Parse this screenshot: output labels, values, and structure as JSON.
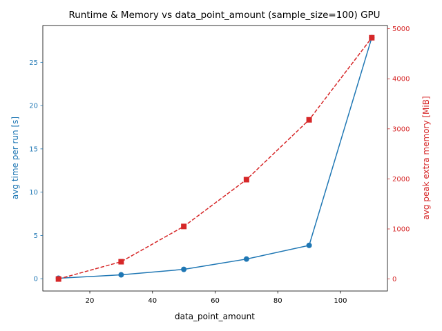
{
  "chart_data": {
    "type": "line",
    "title": "Runtime & Memory vs data_point_amount (sample_size=100) GPU",
    "xlabel": "data_point_amount",
    "ylabel_left": "avg time per run [s]",
    "ylabel_right": "avg peak extra memory [MiB]",
    "x": [
      10,
      30,
      50,
      70,
      90,
      110
    ],
    "xlim": [
      5,
      115
    ],
    "ylim_left": [
      -1.42,
      29.25
    ],
    "ylim_right": [
      -240,
      5064
    ],
    "x_ticks": [
      20,
      40,
      60,
      80,
      100
    ],
    "y_ticks_left": [
      0,
      5,
      10,
      15,
      20,
      25
    ],
    "y_ticks_right": [
      0,
      1000,
      2000,
      3000,
      4000,
      5000
    ],
    "grid": false,
    "colors": {
      "left": "#1f77b4",
      "right": "#d62728"
    },
    "series": [
      {
        "axis": "left",
        "marker": "circle",
        "linestyle": "solid",
        "color": "#1f77b4",
        "values": [
          0.05,
          0.45,
          1.08,
          2.27,
          3.85,
          27.85
        ]
      },
      {
        "axis": "right",
        "marker": "square",
        "linestyle": "dashed",
        "color": "#d62728",
        "values": [
          0,
          345,
          1050,
          1985,
          3180,
          4820
        ]
      }
    ]
  }
}
